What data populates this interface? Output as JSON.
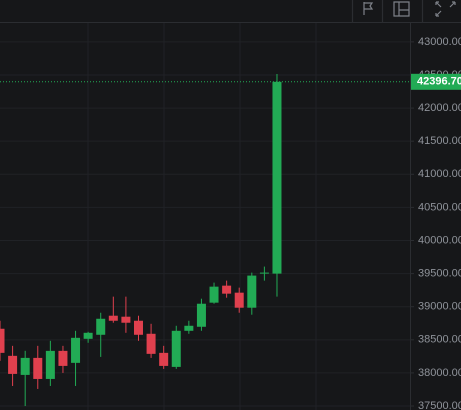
{
  "chart_data": {
    "type": "candlestick",
    "up_color": "#22ab55",
    "down_color": "#e0404e",
    "grid": true,
    "ylim": [
      37440,
      43300
    ],
    "yticks": [
      {
        "value": 37500,
        "label": "37500.00"
      },
      {
        "value": 38000,
        "label": "38000.00"
      },
      {
        "value": 38500,
        "label": "38500.00"
      },
      {
        "value": 39000,
        "label": "39000.00"
      },
      {
        "value": 39500,
        "label": "39500.00"
      },
      {
        "value": 40000,
        "label": "40000.00"
      },
      {
        "value": 40500,
        "label": "40500.00"
      },
      {
        "value": 41000,
        "label": "41000.00"
      },
      {
        "value": 41500,
        "label": "41500.00"
      },
      {
        "value": 42000,
        "label": "42000.00"
      },
      {
        "value": 42500,
        "label": "42500.00"
      },
      {
        "value": 43000,
        "label": "43000.00"
      }
    ],
    "last_price": {
      "value": 42396.7,
      "label": "42396.70"
    },
    "open": [
      38667,
      38258,
      37970,
      38227,
      37909,
      38333,
      38152,
      38515,
      38576,
      38864,
      38849,
      38788,
      38591,
      38303,
      38091,
      38636,
      38697,
      39061,
      39318,
      39212,
      38985,
      39515,
      39500
    ],
    "high": [
      38788,
      38409,
      38334,
      38409,
      38485,
      38409,
      38636,
      38621,
      38909,
      39152,
      39152,
      38864,
      38742,
      38409,
      38712,
      38788,
      39121,
      39364,
      39394,
      39288,
      39515,
      39606,
      42515
    ],
    "low": [
      38182,
      37803,
      37500,
      37758,
      37803,
      38000,
      37803,
      38455,
      38242,
      38758,
      38606,
      38485,
      38227,
      38061,
      38061,
      38591,
      38636,
      39045,
      39136,
      38909,
      38879,
      39394,
      39152
    ],
    "close": [
      38303,
      37985,
      38227,
      37909,
      38333,
      38106,
      38530,
      38606,
      38818,
      38788,
      38758,
      38576,
      38288,
      38106,
      38636,
      38712,
      39045,
      39303,
      39197,
      38985,
      39470,
      39515,
      42396.7
    ]
  }
}
